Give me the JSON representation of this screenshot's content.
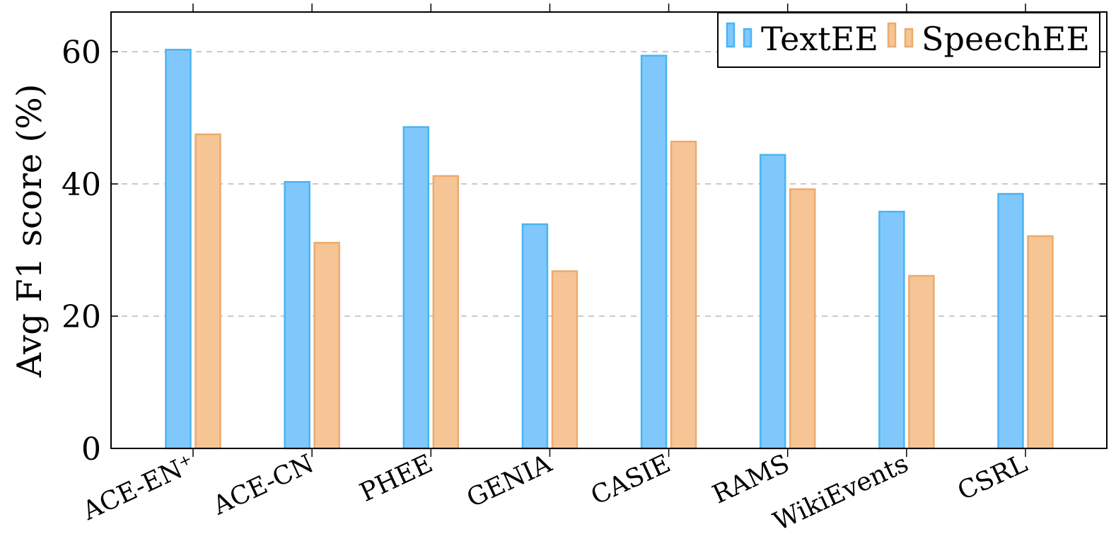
{
  "chart_data": {
    "type": "bar",
    "ylabel": "Avg F1 score (%)",
    "xlabel": "",
    "ylim": [
      0,
      66
    ],
    "yticks": [
      0,
      20,
      40,
      60
    ],
    "grid": "horizontal dashed",
    "legend_position": "top-right",
    "categories": [
      "ACE-EN⁺",
      "ACE-CN",
      "PHEE",
      "GENIA",
      "CASIE",
      "RAMS",
      "WikiEvents",
      "CSRL"
    ],
    "series": [
      {
        "name": "TextEE",
        "color": "#80c8fc",
        "edge": "#4ab4f4",
        "values": [
          60.3,
          40.3,
          48.6,
          33.9,
          59.4,
          44.4,
          35.8,
          38.5
        ]
      },
      {
        "name": "SpeechEE",
        "color": "#f5c595",
        "edge": "#eeaa6c",
        "values": [
          47.5,
          31.1,
          41.2,
          26.8,
          46.4,
          39.2,
          26.1,
          32.1
        ]
      }
    ]
  }
}
